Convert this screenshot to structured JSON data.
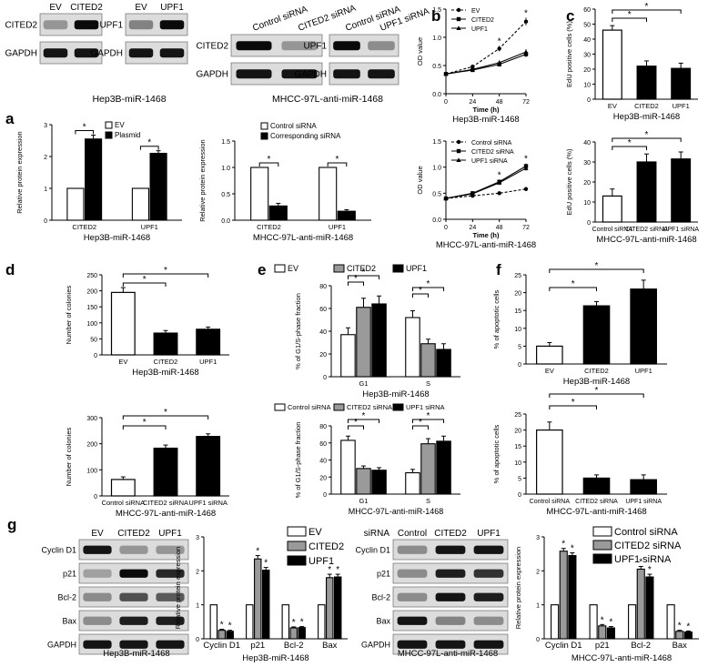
{
  "panel_labels": [
    "a",
    "b",
    "c",
    "d",
    "e",
    "f",
    "g"
  ],
  "star": "*",
  "blots": [
    {
      "id": "a1",
      "lanes": [
        "EV",
        "CITED2"
      ],
      "rows": [
        {
          "name": "CITED2",
          "int": [
            0.25,
            0.95
          ]
        },
        {
          "name": "GAPDH",
          "int": [
            0.9,
            0.9
          ]
        }
      ]
    },
    {
      "id": "a2",
      "lanes": [
        "EV",
        "UPF1"
      ],
      "rows": [
        {
          "name": "UPF1",
          "int": [
            0.35,
            0.95
          ]
        },
        {
          "name": "GAPDH",
          "int": [
            0.9,
            0.9
          ]
        }
      ]
    },
    {
      "id": "a3",
      "lanes": [
        "Control siRNA",
        "CITED2 siRNA"
      ],
      "rows": [
        {
          "name": "CITED2",
          "int": [
            0.95,
            0.25
          ]
        },
        {
          "name": "GAPDH",
          "int": [
            0.9,
            0.9
          ]
        }
      ]
    },
    {
      "id": "a4",
      "lanes": [
        "Control siRNA",
        "UPF1 siRNA"
      ],
      "rows": [
        {
          "name": "UPF1",
          "int": [
            0.95,
            0.3
          ]
        },
        {
          "name": "GAPDH",
          "int": [
            0.9,
            0.9
          ]
        }
      ]
    },
    {
      "id": "g1",
      "lanes": [
        "EV",
        "CITED2",
        "UPF1"
      ],
      "rows": [
        {
          "name": "Cyclin D1",
          "int": [
            0.9,
            0.25,
            0.25
          ]
        },
        {
          "name": "p21",
          "int": [
            0.2,
            0.95,
            0.8
          ]
        },
        {
          "name": "Bcl-2",
          "int": [
            0.3,
            0.6,
            0.55
          ]
        },
        {
          "name": "Bax",
          "int": [
            0.3,
            0.85,
            0.85
          ]
        },
        {
          "name": "GAPDH",
          "int": [
            0.9,
            0.9,
            0.9
          ]
        }
      ]
    },
    {
      "id": "g2",
      "lanes": [
        "Control",
        "CITED2",
        "UPF1"
      ],
      "lane_prefix": "siRNA",
      "rows": [
        {
          "name": "Cyclin D1",
          "int": [
            0.3,
            0.9,
            0.9
          ]
        },
        {
          "name": "p21",
          "int": [
            0.3,
            0.85,
            0.75
          ]
        },
        {
          "name": "Bcl-2",
          "int": [
            0.3,
            0.9,
            0.85
          ]
        },
        {
          "name": "Bax",
          "int": [
            0.9,
            0.35,
            0.3
          ]
        },
        {
          "name": "GAPDH",
          "int": [
            0.9,
            0.9,
            0.9
          ]
        }
      ]
    }
  ],
  "blot_captions": {
    "a_left": "Hep3B-miR-1468",
    "a_right": "MHCC-97L-anti-miR-1468"
  },
  "chart_data": [
    {
      "id": "a_bar1",
      "type": "bar",
      "ylabel": "Relative protein expression",
      "xlabel": "Hep3B-miR-1468",
      "categories": [
        "CITED2",
        "UPF1"
      ],
      "ylim": [
        0,
        3
      ],
      "yticks": [
        0,
        1,
        2,
        3
      ],
      "series": [
        {
          "name": "EV",
          "values": [
            1,
            1
          ],
          "err": [
            0,
            0
          ],
          "color": "#ffffff"
        },
        {
          "name": "Plasmid",
          "values": [
            2.55,
            2.1
          ],
          "err": [
            0.12,
            0.08
          ],
          "color": "#000000"
        }
      ],
      "stars": [
        1,
        1
      ],
      "legend": "top-left"
    },
    {
      "id": "a_bar2",
      "type": "bar",
      "ylabel": "Relative protein expression",
      "xlabel": "MHCC-97L-anti-miR-1468",
      "categories": [
        "CITED2",
        "UPF1"
      ],
      "ylim": [
        0,
        1.5
      ],
      "yticks": [
        0,
        0.5,
        1.0,
        1.5
      ],
      "series": [
        {
          "name": "Control siRNA",
          "values": [
            1,
            1
          ],
          "err": [
            0,
            0
          ],
          "color": "#ffffff"
        },
        {
          "name": "Corresponding siRNA",
          "values": [
            0.27,
            0.17
          ],
          "err": [
            0.05,
            0.03
          ],
          "color": "#000000"
        }
      ],
      "stars": [
        1,
        1
      ],
      "legend": "top-left"
    },
    {
      "id": "b_line1",
      "type": "line",
      "ylabel": "OD value",
      "xlabel": "Time (h)",
      "caption": "Hep3B-miR-1468",
      "x": [
        0,
        24,
        48,
        72
      ],
      "ylim": [
        0,
        1.5
      ],
      "yticks": [
        0,
        0.5,
        1.0,
        1.5
      ],
      "series": [
        {
          "name": "EV",
          "values": [
            0.35,
            0.48,
            0.8,
            1.28
          ],
          "err": [
            0,
            0.03,
            0.05,
            0.07
          ],
          "dash": "3,2"
        },
        {
          "name": "CITED2",
          "values": [
            0.35,
            0.42,
            0.52,
            0.7
          ],
          "err": [
            0,
            0.03,
            0.04,
            0.05
          ],
          "dash": ""
        },
        {
          "name": "UPF1",
          "values": [
            0.35,
            0.43,
            0.55,
            0.74
          ],
          "err": [
            0,
            0.03,
            0.04,
            0.05
          ],
          "dash": ""
        }
      ],
      "stars": [
        2,
        3
      ],
      "legend": "top-left"
    },
    {
      "id": "b_line2",
      "type": "line",
      "ylabel": "OD value",
      "xlabel": "Time (h)",
      "caption": "MHCC-97L-anti-miR-1468",
      "x": [
        0,
        24,
        48,
        72
      ],
      "ylim": [
        0,
        1.5
      ],
      "yticks": [
        0,
        0.5,
        1.0,
        1.5
      ],
      "series": [
        {
          "name": "Control siRNA",
          "values": [
            0.4,
            0.45,
            0.5,
            0.58
          ],
          "err": [
            0,
            0.02,
            0.03,
            0.04
          ],
          "dash": "3,2"
        },
        {
          "name": "CITED2 siRNA",
          "values": [
            0.4,
            0.5,
            0.72,
            1.02
          ],
          "err": [
            0,
            0.03,
            0.04,
            0.05
          ],
          "dash": ""
        },
        {
          "name": "UPF1 siRNA",
          "values": [
            0.4,
            0.49,
            0.7,
            0.98
          ],
          "err": [
            0,
            0.03,
            0.04,
            0.05
          ],
          "dash": ""
        }
      ],
      "stars": [
        2,
        3
      ],
      "legend": "top-left"
    },
    {
      "id": "c_bar1",
      "type": "bar",
      "ylabel": "EdU positive cells (%)",
      "xlabel": "Hep3B-miR-1468",
      "categories": [
        "EV",
        "CITED2",
        "UPF1"
      ],
      "ylim": [
        0,
        60
      ],
      "yticks": [
        0,
        10,
        20,
        30,
        40,
        50,
        60
      ],
      "values": [
        46,
        22,
        20.5
      ],
      "err": [
        3,
        3.5,
        3.5
      ],
      "colors": [
        "#ffffff",
        "#000000",
        "#000000"
      ],
      "brackets": [
        [
          0,
          1
        ],
        [
          0,
          2
        ]
      ]
    },
    {
      "id": "c_bar2",
      "type": "bar",
      "ylabel": "EdU positive cells (%)",
      "xlabel": "MHCC-97L-anti-miR-1468",
      "categories": [
        "Control siRNA",
        "CITED2 siRNA",
        "UPF1 siRNA"
      ],
      "ylim": [
        0,
        40
      ],
      "yticks": [
        0,
        10,
        20,
        30,
        40
      ],
      "values": [
        13,
        30,
        31.5
      ],
      "err": [
        3.5,
        4,
        3.5
      ],
      "colors": [
        "#ffffff",
        "#000000",
        "#000000"
      ],
      "brackets": [
        [
          0,
          1
        ],
        [
          0,
          2
        ]
      ]
    },
    {
      "id": "d_bar1",
      "type": "bar",
      "ylabel": "Number of colonies",
      "xlabel": "Hep3B-miR-1468",
      "categories": [
        "EV",
        "CITED2",
        "UPF1"
      ],
      "ylim": [
        0,
        250
      ],
      "yticks": [
        0,
        50,
        100,
        150,
        200,
        250
      ],
      "values": [
        195,
        68,
        80
      ],
      "err": [
        15,
        8,
        7
      ],
      "colors": [
        "#ffffff",
        "#000000",
        "#000000"
      ],
      "brackets": [
        [
          0,
          1
        ],
        [
          0,
          2
        ]
      ]
    },
    {
      "id": "d_bar2",
      "type": "bar",
      "ylabel": "Number of colonies",
      "xlabel": "MHCC-97L-anti-miR-1468",
      "categories": [
        "Control siRNA",
        "CITED2 siRNA",
        "UPF1 siRNA"
      ],
      "ylim": [
        0,
        300
      ],
      "yticks": [
        0,
        100,
        200,
        300
      ],
      "values": [
        63,
        183,
        228
      ],
      "err": [
        10,
        12,
        10
      ],
      "colors": [
        "#ffffff",
        "#000000",
        "#000000"
      ],
      "brackets": [
        [
          0,
          1
        ],
        [
          0,
          2
        ]
      ]
    },
    {
      "id": "e_bar1",
      "type": "bar",
      "ylabel": "% of G1/S-phase fraction",
      "xlabel": "Hep3B-miR-1468",
      "categories": [
        "G1",
        "S"
      ],
      "ylim": [
        0,
        80
      ],
      "yticks": [
        0,
        20,
        40,
        60,
        80
      ],
      "series": [
        {
          "name": "EV",
          "values": [
            37,
            52
          ],
          "err": [
            6,
            6
          ],
          "color": "#ffffff"
        },
        {
          "name": "CITED2",
          "values": [
            61,
            29
          ],
          "err": [
            8,
            4
          ],
          "color": "#9a9a9a"
        },
        {
          "name": "UPF1",
          "values": [
            64,
            24
          ],
          "err": [
            7,
            5
          ],
          "color": "#000000"
        }
      ],
      "legend": "top"
    },
    {
      "id": "e_bar2",
      "type": "bar",
      "ylabel": "% of G1/S-phase fraction",
      "xlabel": "MHCC-97L-anti-miR-1468",
      "categories": [
        "G1",
        "S"
      ],
      "ylim": [
        0,
        80
      ],
      "yticks": [
        0,
        20,
        40,
        60,
        80
      ],
      "series": [
        {
          "name": "Control siRNA",
          "values": [
            63,
            25
          ],
          "err": [
            5,
            4
          ],
          "color": "#ffffff"
        },
        {
          "name": "CITED2 siRNA",
          "values": [
            30,
            59
          ],
          "err": [
            3,
            6
          ],
          "color": "#9a9a9a"
        },
        {
          "name": "UPF1 siRNA",
          "values": [
            28,
            62
          ],
          "err": [
            3,
            6
          ],
          "color": "#000000"
        }
      ],
      "legend": "top"
    },
    {
      "id": "f_bar1",
      "type": "bar",
      "ylabel": "% of apoptotic cells",
      "xlabel": "Hep3B-miR-1468",
      "categories": [
        "EV",
        "CITED2",
        "UPF1"
      ],
      "ylim": [
        0,
        25
      ],
      "yticks": [
        0,
        5,
        10,
        15,
        20,
        25
      ],
      "values": [
        5,
        16.3,
        21
      ],
      "err": [
        1,
        1.2,
        2.5
      ],
      "colors": [
        "#ffffff",
        "#000000",
        "#000000"
      ],
      "brackets": [
        [
          0,
          1
        ],
        [
          0,
          2
        ]
      ]
    },
    {
      "id": "f_bar2",
      "type": "bar",
      "ylabel": "% of apoptotic cells",
      "xlabel": "MHCC-97L-anti-miR-1468",
      "categories": [
        "Control siRNA",
        "CITED2 siRNA",
        "UPF1 siRNA"
      ],
      "ylim": [
        0,
        25
      ],
      "yticks": [
        0,
        5,
        10,
        15,
        20,
        25
      ],
      "values": [
        20,
        5,
        4.5
      ],
      "err": [
        2.5,
        1,
        1.5
      ],
      "colors": [
        "#ffffff",
        "#000000",
        "#000000"
      ],
      "brackets": [
        [
          0,
          1
        ],
        [
          0,
          2
        ]
      ]
    },
    {
      "id": "g_bar1",
      "type": "bar",
      "ylabel": "Relative protein expression",
      "xlabel": "Hep3B-miR-1468",
      "categories": [
        "Cyclin D1",
        "p21",
        "Bcl-2",
        "Bax"
      ],
      "ylim": [
        0,
        3
      ],
      "yticks": [
        0,
        1,
        2,
        3
      ],
      "series": [
        {
          "name": "EV",
          "values": [
            1,
            1,
            1,
            1
          ],
          "err": [
            0,
            0,
            0,
            0
          ],
          "color": "#ffffff"
        },
        {
          "name": "CITED2",
          "values": [
            0.25,
            2.35,
            0.32,
            1.8
          ],
          "err": [
            0.03,
            0.1,
            0.03,
            0.1
          ],
          "color": "#9a9a9a"
        },
        {
          "name": "UPF1",
          "values": [
            0.22,
            2.02,
            0.33,
            1.82
          ],
          "err": [
            0.03,
            0.08,
            0.03,
            0.08
          ],
          "color": "#000000"
        }
      ],
      "stars": true,
      "legend": "top-right"
    },
    {
      "id": "g_bar2",
      "type": "bar",
      "ylabel": "Relative protein expression",
      "xlabel": "MHCC-97L-anti-miR-1468",
      "categories": [
        "Cyclin D1",
        "p21",
        "Bcl-2",
        "Bax"
      ],
      "ylim": [
        0,
        3
      ],
      "yticks": [
        0,
        1,
        2,
        3
      ],
      "series": [
        {
          "name": "Control siRNA",
          "values": [
            1,
            1,
            1,
            1
          ],
          "err": [
            0,
            0,
            0,
            0
          ],
          "color": "#ffffff"
        },
        {
          "name": "CITED2 siRNA",
          "values": [
            2.58,
            0.38,
            2.05,
            0.22
          ],
          "err": [
            0.08,
            0.04,
            0.08,
            0.03
          ],
          "color": "#9a9a9a"
        },
        {
          "name": "UPF1 siRNA",
          "values": [
            2.45,
            0.32,
            1.82,
            0.2
          ],
          "err": [
            0.08,
            0.04,
            0.08,
            0.03
          ],
          "color": "#000000"
        }
      ],
      "stars": true,
      "legend": "top-right"
    }
  ]
}
